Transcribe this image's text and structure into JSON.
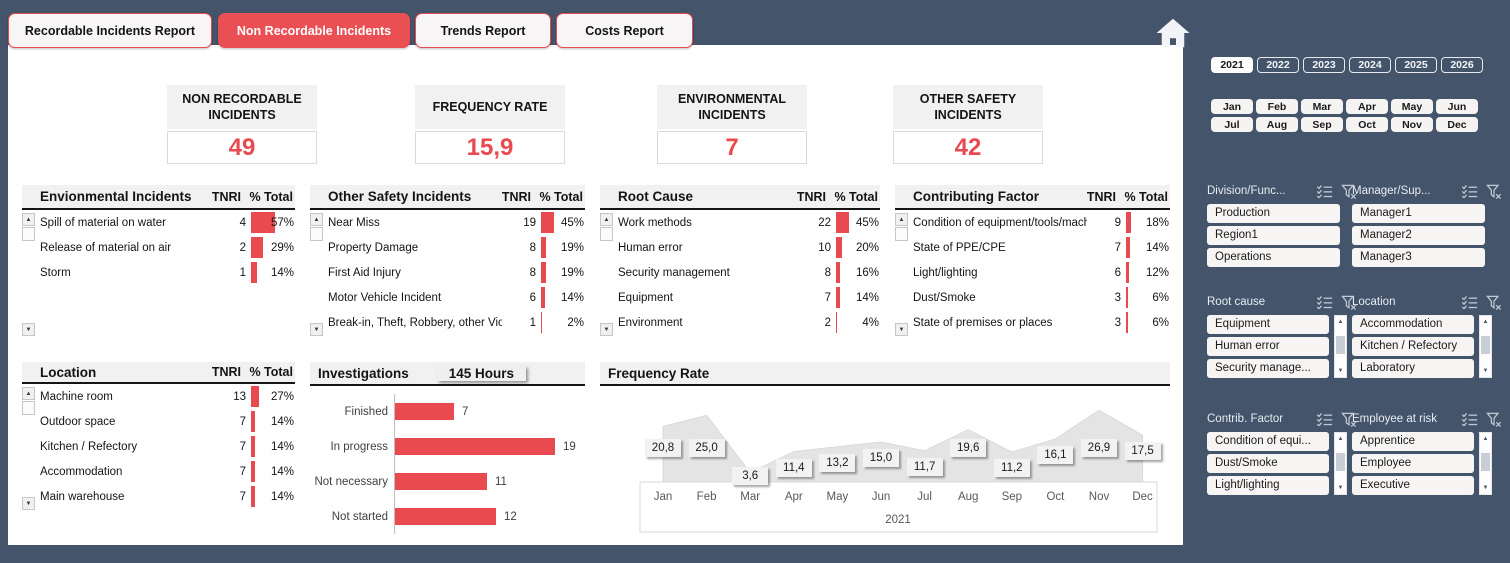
{
  "colors": {
    "accent": "#E94A4F",
    "background": "#44546A",
    "header_fill": "#F1F1F1",
    "area_fill": "#E4E4E4"
  },
  "icons": {
    "home": "home-icon",
    "multi_select": "multi-select-icon",
    "clear_filter": "clear-filter-icon",
    "scroll_up": "▲",
    "scroll_down": "▼"
  },
  "tabs": [
    {
      "label": "Recordable Incidents  Report",
      "active": false
    },
    {
      "label": "Non Recordable Incidents",
      "active": true
    },
    {
      "label": "Trends Report",
      "active": false
    },
    {
      "label": "Costs Report",
      "active": false
    }
  ],
  "kpis": [
    {
      "label": "NON RECORDABLE INCIDENTS",
      "value": "49"
    },
    {
      "label": "FREQUENCY RATE",
      "value": "15,9"
    },
    {
      "label": "ENVIRONMENTAL INCIDENTS",
      "value": "7"
    },
    {
      "label": "OTHER SAFETY INCIDENTS",
      "value": "42"
    }
  ],
  "table_columns": {
    "tnri": "TNRI",
    "pct": "% Total"
  },
  "tables": [
    {
      "id": "environmental",
      "title": "Envionmental Incidents",
      "rows": [
        {
          "name": "Spill of material on water",
          "tnri": "4",
          "pct": "57%",
          "pct_num": 57
        },
        {
          "name": "Release of material on air",
          "tnri": "2",
          "pct": "29%",
          "pct_num": 29
        },
        {
          "name": "Storm",
          "tnri": "1",
          "pct": "14%",
          "pct_num": 14
        }
      ]
    },
    {
      "id": "other_safety",
      "title": "Other Safety Incidents",
      "rows": [
        {
          "name": "Near Miss",
          "tnri": "19",
          "pct": "45%",
          "pct_num": 45
        },
        {
          "name": "Property Damage",
          "tnri": "8",
          "pct": "19%",
          "pct_num": 19
        },
        {
          "name": "First Aid Injury",
          "tnri": "8",
          "pct": "19%",
          "pct_num": 19
        },
        {
          "name": "Motor Vehicle Incident",
          "tnri": "6",
          "pct": "14%",
          "pct_num": 14
        },
        {
          "name": "Break-in, Theft, Robbery, other Violenc",
          "tnri": "1",
          "pct": "2%",
          "pct_num": 2
        }
      ]
    },
    {
      "id": "root_cause",
      "title": "Root Cause",
      "rows": [
        {
          "name": "Work methods",
          "tnri": "22",
          "pct": "45%",
          "pct_num": 45
        },
        {
          "name": "Human error",
          "tnri": "10",
          "pct": "20%",
          "pct_num": 20
        },
        {
          "name": "Security management",
          "tnri": "8",
          "pct": "16%",
          "pct_num": 16
        },
        {
          "name": "Equipment",
          "tnri": "7",
          "pct": "14%",
          "pct_num": 14
        },
        {
          "name": "Environment",
          "tnri": "2",
          "pct": "4%",
          "pct_num": 4
        }
      ]
    },
    {
      "id": "contributing_factor",
      "title": "Contributing Factor",
      "rows": [
        {
          "name": "Condition of equipment/tools/machin",
          "tnri": "9",
          "pct": "18%",
          "pct_num": 18
        },
        {
          "name": "State of PPE/CPE",
          "tnri": "7",
          "pct": "14%",
          "pct_num": 14
        },
        {
          "name": "Light/lighting",
          "tnri": "6",
          "pct": "12%",
          "pct_num": 12
        },
        {
          "name": "Dust/Smoke",
          "tnri": "3",
          "pct": "6%",
          "pct_num": 6
        },
        {
          "name": "State of premises or places",
          "tnri": "3",
          "pct": "6%",
          "pct_num": 6
        }
      ]
    },
    {
      "id": "location",
      "title": "Location",
      "rows": [
        {
          "name": "Machine room",
          "tnri": "13",
          "pct": "27%",
          "pct_num": 27
        },
        {
          "name": "Outdoor space",
          "tnri": "7",
          "pct": "14%",
          "pct_num": 14
        },
        {
          "name": "Kitchen / Refectory",
          "tnri": "7",
          "pct": "14%",
          "pct_num": 14
        },
        {
          "name": "Accommodation",
          "tnri": "7",
          "pct": "14%",
          "pct_num": 14
        },
        {
          "name": "Main warehouse",
          "tnri": "7",
          "pct": "14%",
          "pct_num": 14
        }
      ]
    }
  ],
  "investigations": {
    "title": "Investigations",
    "badge": "145 Hours",
    "categories": [
      "Finished",
      "In progress",
      "Not necessary",
      "Not started"
    ],
    "values": [
      7,
      19,
      11,
      12
    ]
  },
  "frequency": {
    "title": "Frequency Rate",
    "year": "2021",
    "months": [
      "Jan",
      "Feb",
      "Mar",
      "Apr",
      "May",
      "Jun",
      "Jul",
      "Aug",
      "Sep",
      "Oct",
      "Nov",
      "Dec"
    ],
    "values": [
      20.8,
      25.0,
      3.6,
      11.4,
      13.2,
      15.0,
      11.7,
      19.6,
      11.2,
      16.1,
      26.9,
      17.5
    ],
    "labels": [
      "20,8",
      "25,0",
      "3,6",
      "11,4",
      "13,2",
      "15,0",
      "11,7",
      "19,6",
      "11,2",
      "16,1",
      "26,9",
      "17,5"
    ]
  },
  "filters": {
    "years": [
      {
        "label": "2021",
        "selected": true
      },
      {
        "label": "2022",
        "selected": false
      },
      {
        "label": "2023",
        "selected": false
      },
      {
        "label": "2024",
        "selected": false
      },
      {
        "label": "2025",
        "selected": false
      },
      {
        "label": "2026",
        "selected": false
      }
    ],
    "months": [
      "Jan",
      "Feb",
      "Mar",
      "Apr",
      "May",
      "Jun",
      "Jul",
      "Aug",
      "Sep",
      "Oct",
      "Nov",
      "Dec"
    ],
    "slicers": [
      {
        "title": "Division/Func...",
        "items": [
          "Production",
          "Region1",
          "Operations"
        ],
        "scrollbar": false
      },
      {
        "title": "Manager/Sup...",
        "items": [
          "Manager1",
          "Manager2",
          "Manager3"
        ],
        "scrollbar": false
      },
      {
        "title": "Root cause",
        "items": [
          "Equipment",
          "Human error",
          "Security manage..."
        ],
        "scrollbar": true
      },
      {
        "title": "Location",
        "items": [
          "Accommodation",
          "Kitchen / Refectory",
          "Laboratory"
        ],
        "scrollbar": true
      },
      {
        "title": "Contrib. Factor",
        "items": [
          "Condition of equi...",
          "Dust/Smoke",
          "Light/lighting"
        ],
        "scrollbar": true
      },
      {
        "title": "Employee at risk",
        "items": [
          "Apprentice",
          "Employee",
          "Executive"
        ],
        "scrollbar": true
      }
    ]
  },
  "chart_data": [
    {
      "type": "bar",
      "title": "Investigations",
      "orientation": "horizontal",
      "categories": [
        "Finished",
        "In progress",
        "Not necessary",
        "Not started"
      ],
      "values": [
        7,
        19,
        11,
        12
      ],
      "annotation": "145 Hours",
      "xlim": [
        0,
        20
      ]
    },
    {
      "type": "area",
      "title": "Frequency Rate",
      "xlabel": "2021",
      "categories": [
        "Jan",
        "Feb",
        "Mar",
        "Apr",
        "May",
        "Jun",
        "Jul",
        "Aug",
        "Sep",
        "Oct",
        "Nov",
        "Dec"
      ],
      "values": [
        20.8,
        25.0,
        3.6,
        11.4,
        13.2,
        15.0,
        11.7,
        19.6,
        11.2,
        16.1,
        26.9,
        17.5
      ],
      "ylim": [
        0,
        36
      ],
      "grid": false,
      "legend": false
    }
  ]
}
